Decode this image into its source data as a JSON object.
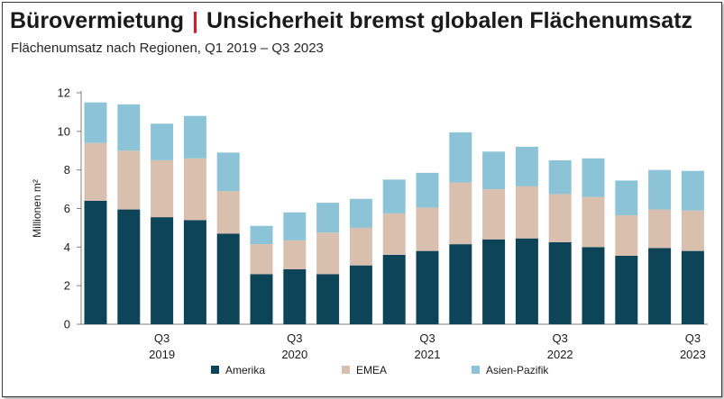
{
  "header": {
    "title_part1": "Bürovermietung",
    "title_separator": "|",
    "title_part2": "Unsicherheit bremst globalen Flächenumsatz",
    "subtitle": "Flächenumsatz nach Regionen, Q1 2019 – Q3 2023"
  },
  "colors": {
    "Amerika": "#0d4458",
    "EMEA": "#d8bfae",
    "Asien-Pazifik": "#8dc3d6",
    "title_separator": "#d0202e"
  },
  "chart_data": {
    "type": "bar",
    "stacked": true,
    "title": "Bürovermietung | Unsicherheit bremst globalen Flächenumsatz",
    "subtitle": "Flächenumsatz nach Regionen, Q1 2019 – Q3 2023",
    "xlabel": "",
    "ylabel": "Millionen m²",
    "ylim": [
      0,
      12
    ],
    "yticks": [
      0,
      2,
      4,
      6,
      8,
      10,
      12
    ],
    "grid": false,
    "legend_position": "bottom",
    "categories": [
      "Q1 2019",
      "Q2 2019",
      "Q3 2019",
      "Q4 2019",
      "Q1 2020",
      "Q2 2020",
      "Q3 2020",
      "Q4 2020",
      "Q1 2021",
      "Q2 2021",
      "Q3 2021",
      "Q4 2021",
      "Q1 2022",
      "Q2 2022",
      "Q3 2022",
      "Q4 2022",
      "Q1 2023",
      "Q2 2023",
      "Q3 2023"
    ],
    "x_tick_labels": [
      {
        "index": 2,
        "line1": "Q3",
        "line2": "2019"
      },
      {
        "index": 6,
        "line1": "Q3",
        "line2": "2020"
      },
      {
        "index": 10,
        "line1": "Q3",
        "line2": "2021"
      },
      {
        "index": 14,
        "line1": "Q3",
        "line2": "2022"
      },
      {
        "index": 18,
        "line1": "Q3",
        "line2": "2023"
      }
    ],
    "series": [
      {
        "name": "Amerika",
        "values": [
          6.4,
          5.95,
          5.55,
          5.4,
          4.7,
          2.6,
          2.85,
          2.6,
          3.05,
          3.6,
          3.8,
          4.15,
          4.4,
          4.45,
          4.25,
          4.0,
          3.55,
          3.95,
          3.8
        ]
      },
      {
        "name": "EMEA",
        "values": [
          3.0,
          3.05,
          2.95,
          3.2,
          2.2,
          1.55,
          1.5,
          2.15,
          1.95,
          2.15,
          2.25,
          3.2,
          2.6,
          2.7,
          2.5,
          2.6,
          2.1,
          2.0,
          2.1
        ]
      },
      {
        "name": "Asien-Pazifik",
        "values": [
          2.1,
          2.4,
          1.9,
          2.2,
          2.0,
          0.95,
          1.45,
          1.55,
          1.5,
          1.75,
          1.8,
          2.6,
          1.95,
          2.05,
          1.75,
          2.0,
          1.8,
          2.05,
          2.05
        ]
      }
    ]
  }
}
